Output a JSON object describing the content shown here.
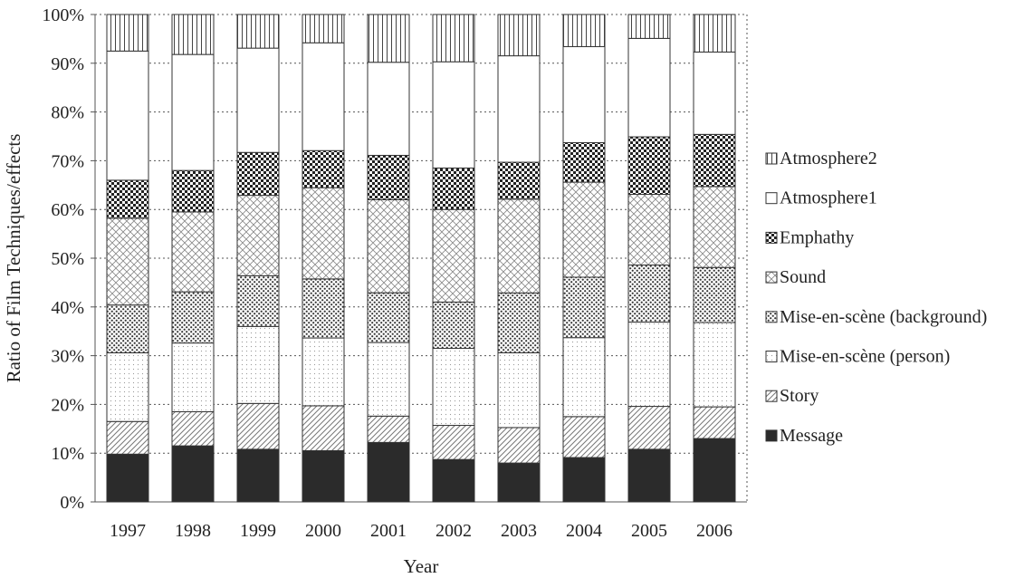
{
  "chart_data": {
    "type": "bar",
    "stacked": true,
    "title": "",
    "xlabel": "Year",
    "ylabel": "Ratio of Film Techniques/effects",
    "ylim": [
      0,
      100
    ],
    "yticks": [
      "0%",
      "10%",
      "20%",
      "30%",
      "40%",
      "50%",
      "60%",
      "70%",
      "80%",
      "90%",
      "100%"
    ],
    "grid": "horizontal dotted",
    "legend_position": "right",
    "categories": [
      "1997",
      "1998",
      "1999",
      "2000",
      "2001",
      "2002",
      "2003",
      "2004",
      "2005",
      "2006"
    ],
    "series": [
      {
        "name": "Message",
        "pattern": "solid",
        "color": "#2b2b2b",
        "values": [
          9.8,
          11.5,
          10.8,
          10.5,
          12.2,
          8.7,
          8.0,
          9.1,
          10.8,
          13.0
        ]
      },
      {
        "name": "Story",
        "pattern": "diagonal",
        "color": "#777777",
        "values": [
          6.7,
          7.0,
          9.4,
          9.2,
          5.4,
          7.0,
          7.3,
          8.4,
          8.8,
          6.5
        ]
      },
      {
        "name": "Mise-en-scène (person)",
        "pattern": "fine-dots",
        "color": "#999999",
        "values": [
          14.1,
          14.1,
          15.8,
          13.9,
          15.1,
          15.8,
          15.4,
          16.2,
          17.3,
          17.3
        ]
      },
      {
        "name": "Mise-en-scène (background)",
        "pattern": "dense-dots",
        "color": "#333333",
        "values": [
          9.8,
          10.5,
          10.4,
          12.1,
          10.2,
          9.5,
          12.3,
          12.4,
          11.7,
          11.3
        ]
      },
      {
        "name": "Sound",
        "pattern": "crosshatch",
        "color": "#888888",
        "values": [
          17.8,
          16.4,
          16.5,
          18.7,
          19.1,
          19.0,
          19.3,
          19.5,
          14.5,
          16.6
        ]
      },
      {
        "name": "Emphathy",
        "pattern": "checker",
        "color": "#222222",
        "values": [
          7.8,
          8.5,
          8.8,
          7.6,
          9.1,
          8.5,
          7.6,
          8.1,
          11.8,
          10.7
        ]
      },
      {
        "name": "Atmosphere1",
        "pattern": "blank",
        "color": "#ffffff",
        "values": [
          26.5,
          23.8,
          21.4,
          22.1,
          19.1,
          21.8,
          21.9,
          19.7,
          20.2,
          16.9
        ]
      },
      {
        "name": "Atmosphere2",
        "pattern": "vertical-lines",
        "color": "#444444",
        "values": [
          7.5,
          8.2,
          6.9,
          5.8,
          9.8,
          9.7,
          8.5,
          6.6,
          4.9,
          7.7
        ]
      }
    ]
  }
}
